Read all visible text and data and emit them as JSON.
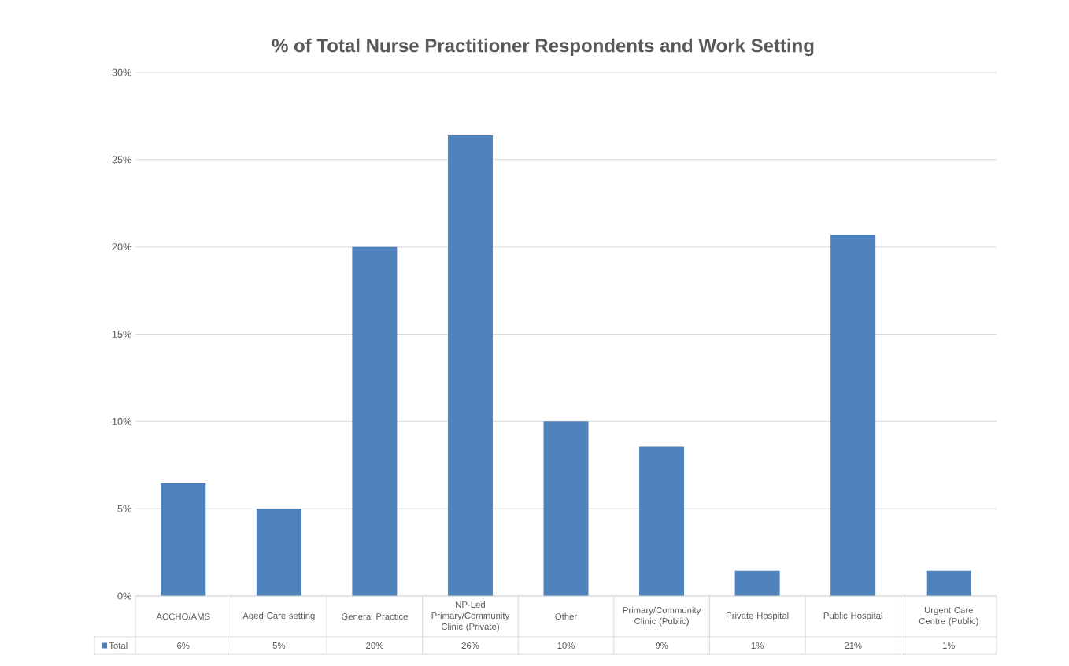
{
  "chart_data": {
    "type": "bar",
    "title": "% of Total Nurse Practitioner Respondents and Work Setting",
    "categories": [
      "ACCHO/AMS",
      "Aged Care setting",
      "General Practice",
      "NP-Led Primary/Community Clinic (Private)",
      "Other",
      "Primary/Community Clinic (Public)",
      "Private Hospital",
      "Public Hospital",
      "Urgent Care Centre (Public)"
    ],
    "series": [
      {
        "name": "Total",
        "color": "#4f81bd",
        "values": [
          6.45,
          5,
          20,
          26.4,
          10,
          8.55,
          1.45,
          20.7,
          1.45
        ],
        "value_labels": [
          "6%",
          "5%",
          "20%",
          "26%",
          "10%",
          "9%",
          "1%",
          "21%",
          "1%"
        ]
      }
    ],
    "ylim": [
      0,
      30
    ],
    "yticks": [
      {
        "value": 0,
        "label": "0%"
      },
      {
        "value": 5,
        "label": "5%"
      },
      {
        "value": 10,
        "label": "10%"
      },
      {
        "value": 15,
        "label": "15%"
      },
      {
        "value": 20,
        "label": "20%"
      },
      {
        "value": 25,
        "label": "25%"
      },
      {
        "value": 30,
        "label": "30%"
      }
    ],
    "grid": "y",
    "legend": "bottom"
  }
}
